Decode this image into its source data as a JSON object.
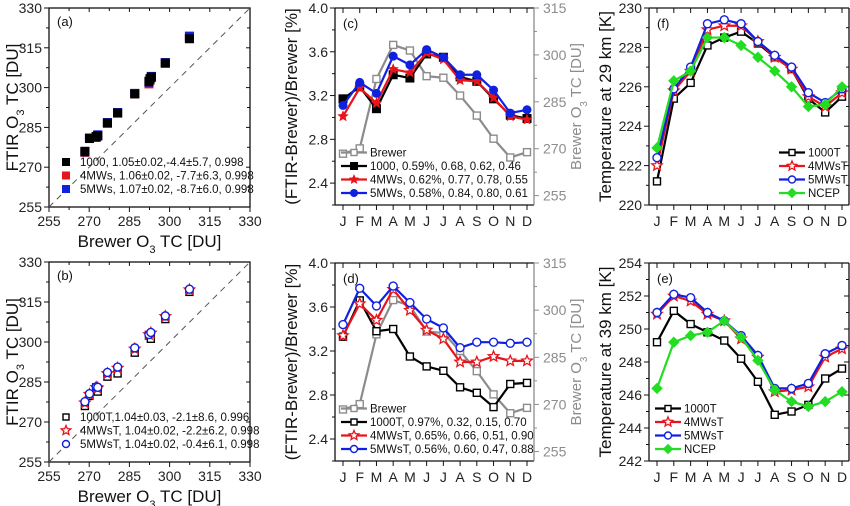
{
  "chart_data": [
    {
      "id": "a",
      "type": "scatter",
      "panel_label": "(a)",
      "xlabel": "Brewer O3 TC [DU]",
      "ylabel": "FTIR O3 TC [DU]",
      "xlim": [
        255,
        330
      ],
      "ylim": [
        255,
        330
      ],
      "xticks": [
        255,
        270,
        285,
        300,
        315,
        330
      ],
      "yticks": [
        255,
        270,
        285,
        300,
        315,
        330
      ],
      "reference_line": "1:1 dashed",
      "legend_position": "bottom-left",
      "x": [
        268.4,
        270.1,
        272.6,
        273.2,
        276.8,
        280.6,
        287.0,
        292.3,
        292.7,
        293.2,
        298.4,
        307.4
      ],
      "series": [
        {
          "name": "1000, 1.05±0.02,-4.4±5.7, 0.998",
          "color": "#000000",
          "marker": "filled-square",
          "values": [
            276.0,
            281.0,
            281.6,
            282.0,
            286.8,
            290.6,
            297.8,
            302.4,
            303.4,
            304.2,
            309.4,
            318.6
          ]
        },
        {
          "name": "4MWs, 1.06±0.02, -7.7±6.3, 0.998",
          "color": "#e8141c",
          "marker": "filled-square",
          "values": [
            275.6,
            280.8,
            281.2,
            281.8,
            286.6,
            290.4,
            297.6,
            301.4,
            302.8,
            303.8,
            309.2,
            319.0
          ]
        },
        {
          "name": "5MWs, 1.07±0.02, -8.7±6.0, 0.998",
          "color": "#1020e0",
          "marker": "filled-square",
          "values": [
            275.8,
            280.9,
            281.4,
            282.2,
            286.8,
            290.6,
            297.8,
            302.0,
            303.2,
            304.2,
            309.4,
            319.4
          ]
        }
      ]
    },
    {
      "id": "b",
      "type": "scatter",
      "panel_label": "(b)",
      "xlabel": "Brewer O3 TC [DU]",
      "ylabel": "FTIR O3 TC [DU]",
      "xlim": [
        255,
        330
      ],
      "ylim": [
        255,
        330
      ],
      "xticks": [
        255,
        270,
        285,
        300,
        315,
        330
      ],
      "yticks": [
        255,
        270,
        285,
        300,
        315,
        330
      ],
      "reference_line": "1:1 dashed",
      "legend_position": "bottom-left",
      "x": [
        268.4,
        270.1,
        272.6,
        273.2,
        276.8,
        280.6,
        287.0,
        292.3,
        293.0,
        298.4,
        307.4
      ],
      "series": [
        {
          "name": "1000T,1.04±0.03, -2.1±8.6, 0.996",
          "color": "#000000",
          "marker": "open-square",
          "values": [
            276.0,
            279.8,
            283.0,
            281.4,
            287.0,
            288.2,
            296.0,
            302.4,
            301.2,
            308.6,
            318.8
          ]
        },
        {
          "name": "4MWsT, 1.04±0.02, -2.2±6.2, 0.998",
          "color": "#e8141c",
          "marker": "open-star",
          "values": [
            277.2,
            280.4,
            283.0,
            282.8,
            288.2,
            290.2,
            297.4,
            302.8,
            303.4,
            309.6,
            319.6
          ]
        },
        {
          "name": "5MWsT, 1.04±0.02, -0.4±6.1, 0.998",
          "color": "#1020e0",
          "marker": "open-circle",
          "values": [
            277.6,
            280.6,
            283.2,
            283.0,
            288.6,
            290.6,
            297.8,
            302.8,
            303.6,
            309.8,
            319.8
          ]
        }
      ]
    },
    {
      "id": "c",
      "type": "line",
      "panel_label": "(c)",
      "categories": [
        "J",
        "F",
        "M",
        "A",
        "M",
        "J",
        "J",
        "A",
        "S",
        "O",
        "N",
        "D"
      ],
      "ylabel": "(FTIR-Brewer)/Brewer [%]",
      "ylim": [
        2.2,
        4.0
      ],
      "yticks": [
        2.4,
        2.8,
        3.2,
        3.6,
        4.0
      ],
      "y2label": "Brewer O3 TC [DU]",
      "y2lim": [
        252,
        315
      ],
      "y2ticks": [
        255,
        270,
        285,
        300,
        315
      ],
      "legend_position": "bottom-left",
      "series": [
        {
          "name": "Brewer",
          "axis": "right",
          "color": "#8c8c8c",
          "marker": "open-square",
          "values": [
            268.4,
            270.1,
            292.3,
            303.2,
            301.4,
            293.2,
            292.7,
            287.0,
            280.6,
            273.2,
            267.2,
            268.9
          ]
        },
        {
          "name": "1000, 0.59%, 0.68, 0.62, 0.46",
          "axis": "left",
          "color": "#000000",
          "marker": "filled-square",
          "values": [
            3.17,
            3.28,
            3.08,
            3.39,
            3.36,
            3.58,
            3.55,
            3.37,
            3.33,
            3.17,
            3.02,
            2.99
          ]
        },
        {
          "name": "4MWs, 0.62%, 0.77, 0.78, 0.55",
          "axis": "left",
          "color": "#e8141c",
          "marker": "filled-star",
          "values": [
            3.01,
            3.27,
            3.13,
            3.44,
            3.41,
            3.59,
            3.53,
            3.34,
            3.33,
            3.18,
            3.01,
            2.98
          ]
        },
        {
          "name": "5MWs, 0.58%, 0.84, 0.80, 0.61",
          "axis": "left",
          "color": "#1020e0",
          "marker": "filled-circle",
          "values": [
            3.11,
            3.32,
            3.22,
            3.56,
            3.48,
            3.62,
            3.55,
            3.39,
            3.39,
            3.25,
            3.04,
            3.07
          ]
        }
      ]
    },
    {
      "id": "d",
      "type": "line",
      "panel_label": "(d)",
      "categories": [
        "J",
        "F",
        "M",
        "A",
        "M",
        "J",
        "J",
        "A",
        "S",
        "O",
        "N",
        "D"
      ],
      "ylabel": "(FTIR-Brewer)/Brewer [%]",
      "ylim": [
        2.2,
        4.0
      ],
      "yticks": [
        2.4,
        2.8,
        3.2,
        3.6,
        4.0
      ],
      "y2label": "Brewer O3 TC [DU]",
      "y2lim": [
        252,
        315
      ],
      "y2ticks": [
        255,
        270,
        285,
        300,
        315
      ],
      "legend_position": "bottom-left",
      "series": [
        {
          "name": "Brewer",
          "axis": "right",
          "color": "#8c8c8c",
          "marker": "open-square",
          "values": [
            268.4,
            270.1,
            292.3,
            303.2,
            301.4,
            293.2,
            292.7,
            287.0,
            280.6,
            273.2,
            267.2,
            268.9
          ]
        },
        {
          "name": "1000T, 0.97%, 0.32, 0.15, 0.70",
          "axis": "left",
          "color": "#000000",
          "marker": "open-square",
          "values": [
            3.33,
            3.66,
            3.38,
            3.4,
            3.15,
            3.06,
            3.02,
            2.87,
            2.82,
            2.69,
            2.9,
            2.91
          ]
        },
        {
          "name": "4MWsT, 0.65%, 0.66, 0.51, 0.90",
          "axis": "left",
          "color": "#e8141c",
          "marker": "open-star",
          "values": [
            3.34,
            3.63,
            3.48,
            3.76,
            3.57,
            3.39,
            3.31,
            3.1,
            3.1,
            3.15,
            3.11,
            3.11
          ]
        },
        {
          "name": "5MWsT, 0.56%, 0.60, 0.47, 0.88",
          "axis": "left",
          "color": "#1020e0",
          "marker": "open-circle",
          "values": [
            3.44,
            3.77,
            3.61,
            3.79,
            3.64,
            3.49,
            3.41,
            3.23,
            3.28,
            3.28,
            3.27,
            3.28
          ]
        }
      ]
    },
    {
      "id": "f",
      "type": "line",
      "panel_label": "(f)",
      "categories": [
        "J",
        "F",
        "M",
        "A",
        "M",
        "J",
        "J",
        "A",
        "S",
        "O",
        "N",
        "D"
      ],
      "ylabel": "Temperature at 29 km [K]",
      "ylim": [
        220,
        230
      ],
      "yticks": [
        220,
        222,
        224,
        226,
        228,
        230
      ],
      "legend_position": "bottom-right",
      "series": [
        {
          "name": "1000T",
          "color": "#000000",
          "marker": "open-square",
          "values": [
            221.2,
            225.4,
            226.2,
            228.1,
            228.5,
            228.8,
            228.2,
            227.5,
            226.9,
            225.4,
            224.7,
            225.5
          ]
        },
        {
          "name": "4MWsT",
          "color": "#e8141c",
          "marker": "open-star",
          "values": [
            222.0,
            225.8,
            226.8,
            228.9,
            229.1,
            229.1,
            228.3,
            227.5,
            226.9,
            225.5,
            225.0,
            225.7
          ]
        },
        {
          "name": "5MWsT",
          "color": "#1020e0",
          "marker": "open-circle",
          "values": [
            222.4,
            225.9,
            227.0,
            229.2,
            229.4,
            229.2,
            228.3,
            227.6,
            227.0,
            225.7,
            225.2,
            225.9
          ]
        },
        {
          "name": "NCEP",
          "color": "#22dd22",
          "marker": "filled-diamond",
          "values": [
            222.9,
            226.3,
            226.8,
            228.5,
            228.5,
            228.1,
            227.5,
            226.8,
            226.0,
            225.0,
            225.1,
            226.0
          ]
        }
      ]
    },
    {
      "id": "e",
      "type": "line",
      "panel_label": "(e)",
      "categories": [
        "J",
        "F",
        "M",
        "A",
        "M",
        "J",
        "J",
        "A",
        "S",
        "O",
        "N",
        "D"
      ],
      "ylabel": "Temperature at 39 km [K]",
      "ylim": [
        242,
        254
      ],
      "yticks": [
        242,
        244,
        246,
        248,
        250,
        252,
        254
      ],
      "legend_position": "bottom-left",
      "series": [
        {
          "name": "1000T",
          "color": "#000000",
          "marker": "open-square",
          "values": [
            249.2,
            251.1,
            250.3,
            249.8,
            249.3,
            248.2,
            246.8,
            244.8,
            245.0,
            245.4,
            247.0,
            247.6
          ]
        },
        {
          "name": "4MWsT",
          "color": "#e8141c",
          "marker": "open-star",
          "values": [
            250.9,
            252.0,
            251.7,
            250.9,
            250.5,
            249.4,
            248.3,
            246.2,
            246.3,
            246.5,
            248.3,
            248.8
          ]
        },
        {
          "name": "5MWsT",
          "color": "#1020e0",
          "marker": "open-circle",
          "values": [
            251.0,
            252.1,
            251.9,
            251.0,
            250.5,
            249.6,
            248.4,
            246.4,
            246.4,
            246.7,
            248.5,
            249.0
          ]
        },
        {
          "name": "NCEP",
          "color": "#22dd22",
          "marker": "filled-diamond",
          "values": [
            246.4,
            249.2,
            249.6,
            249.8,
            250.5,
            249.5,
            248.1,
            246.3,
            245.6,
            245.3,
            245.6,
            246.2
          ]
        }
      ]
    }
  ]
}
